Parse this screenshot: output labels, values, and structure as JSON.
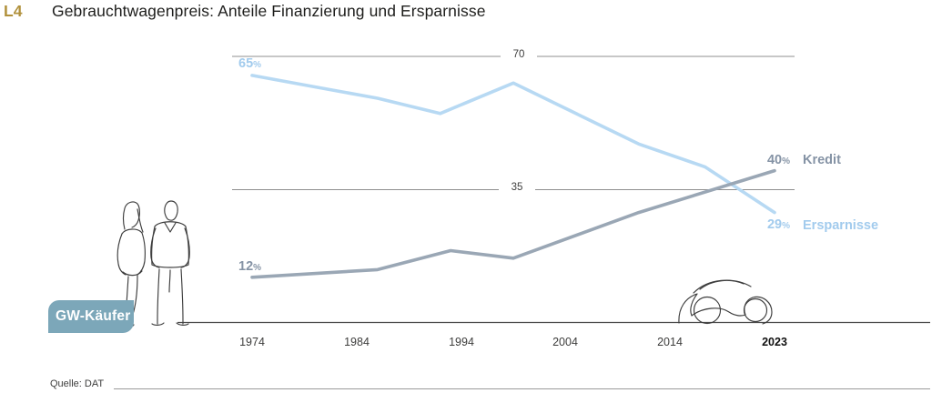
{
  "page": {
    "tag": "L4",
    "title": "Gebrauchtwagenpreis: Anteile Finanzierung und Ersparnisse",
    "source": "Quelle: DAT"
  },
  "badge": {
    "label": "GW-Käufer"
  },
  "illustrations": {
    "left": "two-used-car-buyers-line-sketch",
    "right": "car-line-sketch"
  },
  "colors": {
    "tag_gold": "#b1913c",
    "title_text": "#1d1d1b",
    "axis_text": "#3d3d3c",
    "grid_line": "#8f8f8f",
    "axis_line": "#4b4b4b",
    "source_line": "#9a9a9a",
    "kredit_line": "#9aa7b5",
    "kredit_text": "#8593a5",
    "ersparnisse_line": "#b7d9f3",
    "ersparnisse_text": "#a2cbed",
    "badge_bg": "#7ca7b9",
    "badge_text": "#ffffff",
    "sketch_stroke": "#3d3d3d"
  },
  "chart_data": {
    "type": "line",
    "title": "Gebrauchtwagenpreis: Anteile Finanzierung und Ersparnisse",
    "unit": "%",
    "x_ticks": [
      1974,
      1984,
      1994,
      2004,
      2014,
      2023
    ],
    "x_tick_labels": [
      "1974",
      "1984",
      "1994",
      "2004",
      "2014",
      "2023"
    ],
    "gridlines": [
      {
        "value": 70,
        "label": "70"
      },
      {
        "value": 35,
        "label": "35"
      }
    ],
    "ylim": [
      0,
      75
    ],
    "grid": "two horizontal reference lines with centered value labels",
    "legend_position": "right of line ends",
    "series": [
      {
        "name": "Kredit",
        "color": "#9aa7b5",
        "points": [
          {
            "year": 1974,
            "value": 12
          },
          {
            "year": 1986,
            "value": 14
          },
          {
            "year": 1993,
            "value": 19
          },
          {
            "year": 1999,
            "value": 17
          },
          {
            "year": 2011,
            "value": 29
          },
          {
            "year": 2023,
            "value": 40
          }
        ],
        "start_label": {
          "value": "12",
          "unit": "%"
        },
        "end_label": {
          "value": "40",
          "unit": "%"
        }
      },
      {
        "name": "Ersparnisse",
        "color": "#b7d9f3",
        "points": [
          {
            "year": 1974,
            "value": 65
          },
          {
            "year": 1980,
            "value": 62
          },
          {
            "year": 1986,
            "value": 59
          },
          {
            "year": 1992,
            "value": 55
          },
          {
            "year": 1999,
            "value": 63
          },
          {
            "year": 2011,
            "value": 47
          },
          {
            "year": 2017,
            "value": 41
          },
          {
            "year": 2023,
            "value": 29
          }
        ],
        "start_label": {
          "value": "65",
          "unit": "%"
        },
        "end_label": {
          "value": "29",
          "unit": "%"
        }
      }
    ]
  }
}
